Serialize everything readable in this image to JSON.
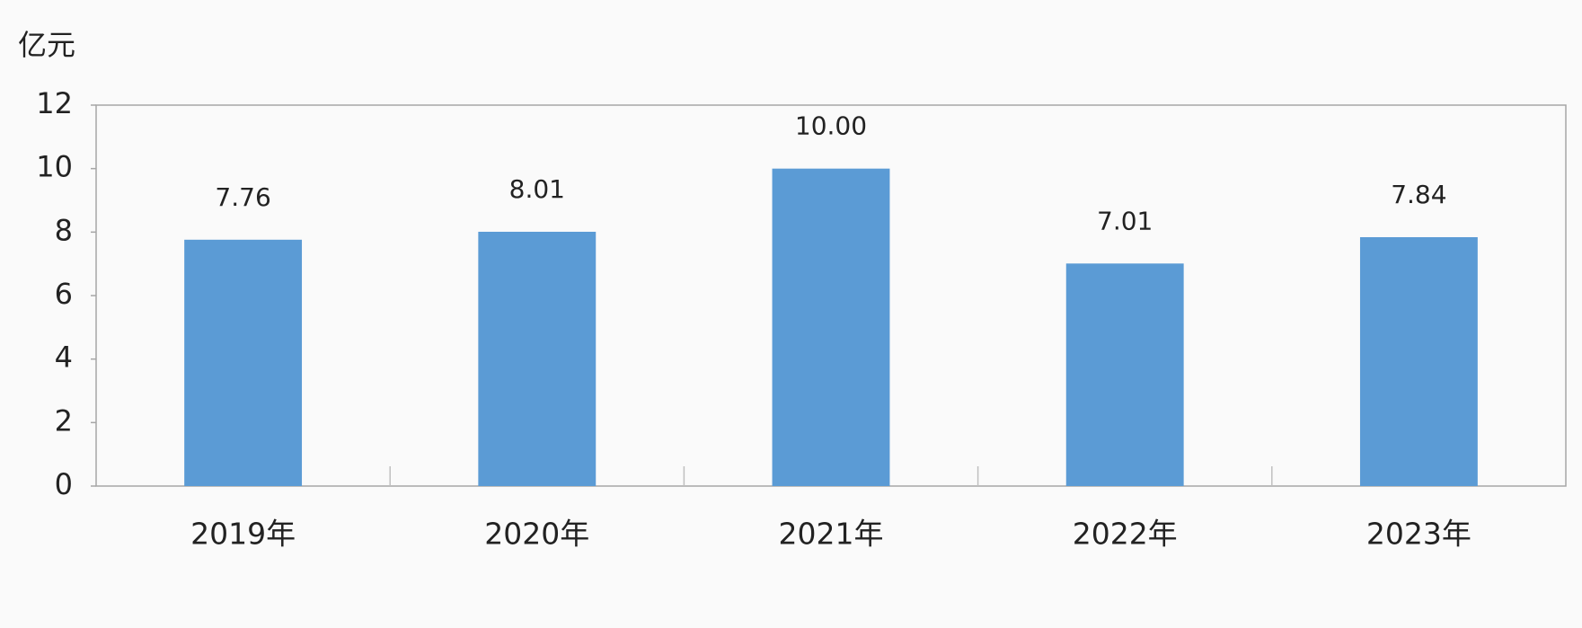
{
  "chart_data": {
    "type": "bar",
    "y_label": "亿元",
    "categories": [
      "2019年",
      "2020年",
      "2021年",
      "2022年",
      "2023年"
    ],
    "values": [
      7.76,
      8.01,
      10,
      7.01,
      7.84
    ],
    "value_labels": [
      "7.76",
      "8.01",
      "10.00",
      "7.01",
      "7.84"
    ],
    "color": "#5b9bd5",
    "ylim": [
      0,
      12
    ],
    "yticks": [
      0,
      2,
      4,
      6,
      8,
      10,
      12
    ],
    "grid": false
  }
}
